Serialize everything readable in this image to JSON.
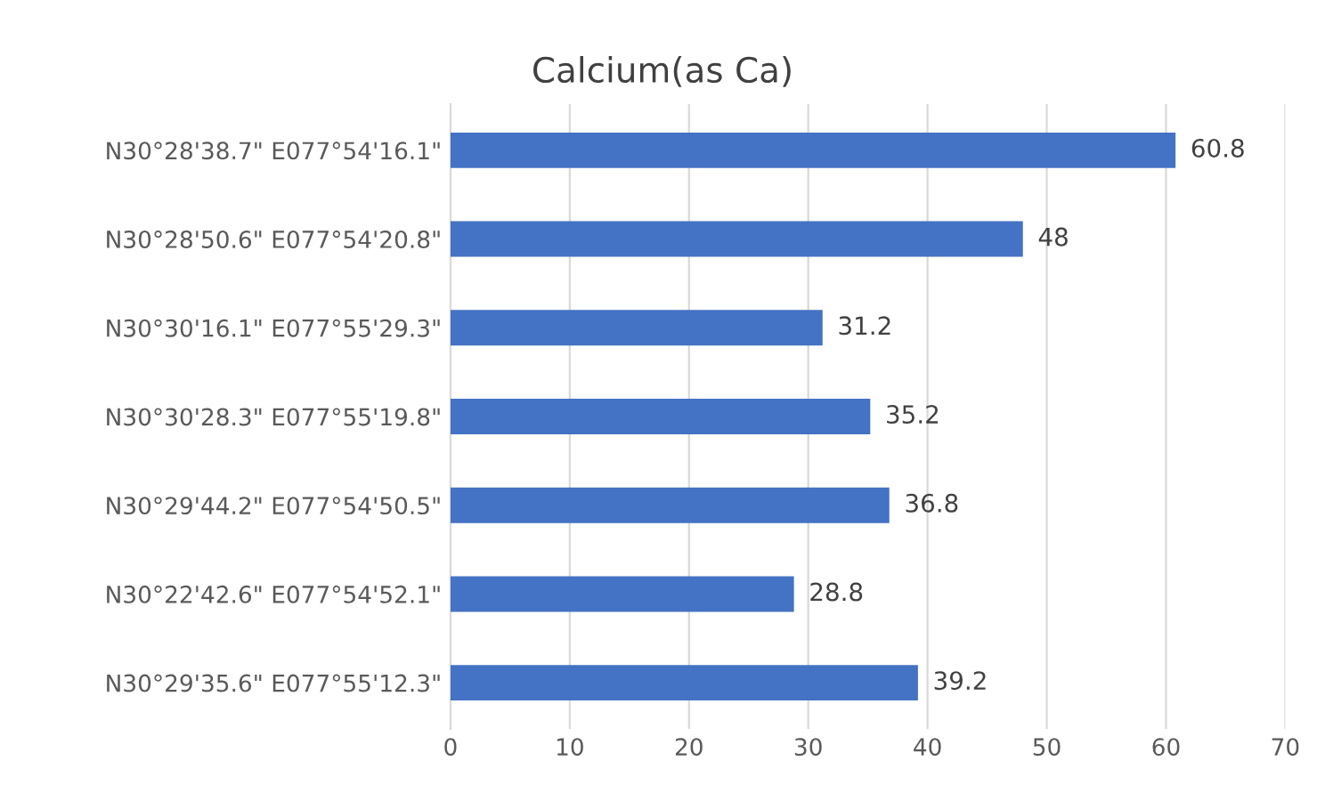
{
  "chart_data": {
    "type": "bar",
    "orientation": "horizontal",
    "title": "Calcium(as Ca)",
    "categories": [
      "N30°28'38.7\" E077°54'16.1\"",
      "N30°28'50.6\" E077°54'20.8\"",
      "N30°30'16.1\" E077°55'29.3\"",
      "N30°30'28.3\" E077°55'19.8\"",
      "N30°29'44.2\" E077°54'50.5\"",
      "N30°22'42.6\" E077°54'52.1\"",
      "N30°29'35.6\" E077°55'12.3\""
    ],
    "values": [
      60.8,
      48,
      31.2,
      35.2,
      36.8,
      28.8,
      39.2
    ],
    "color": "#4472c4",
    "data_labels": true,
    "xlim": [
      0,
      70
    ],
    "xticks": [
      0,
      10,
      20,
      30,
      40,
      50,
      60,
      70
    ],
    "grid": "x"
  }
}
